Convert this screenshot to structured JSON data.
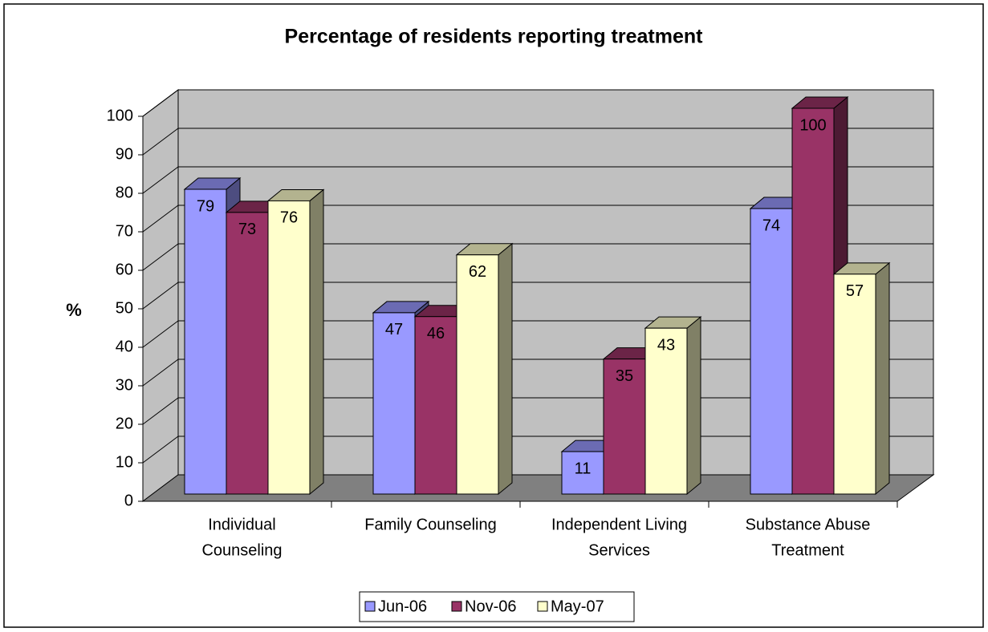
{
  "chart_data": {
    "type": "bar3d",
    "title": "Percentage of residents reporting treatment",
    "y_label": "%",
    "categories": [
      [
        "Individual",
        "Counseling"
      ],
      [
        "Family Counseling"
      ],
      [
        "Independent Living",
        "Services"
      ],
      [
        "Substance Abuse",
        "Treatment"
      ]
    ],
    "series": [
      {
        "name": "Jun-06",
        "color": "#9999ff",
        "values": [
          79,
          47,
          11,
          74
        ]
      },
      {
        "name": "Nov-06",
        "color": "#993366",
        "values": [
          73,
          46,
          35,
          100
        ]
      },
      {
        "name": "May-07",
        "color": "#ffffcc",
        "values": [
          76,
          62,
          43,
          57
        ]
      }
    ],
    "ylim": [
      0,
      100
    ],
    "yticks": [
      0,
      10,
      20,
      30,
      40,
      50,
      60,
      70,
      80,
      90,
      100
    ],
    "grid": true,
    "legend": "bottom"
  }
}
